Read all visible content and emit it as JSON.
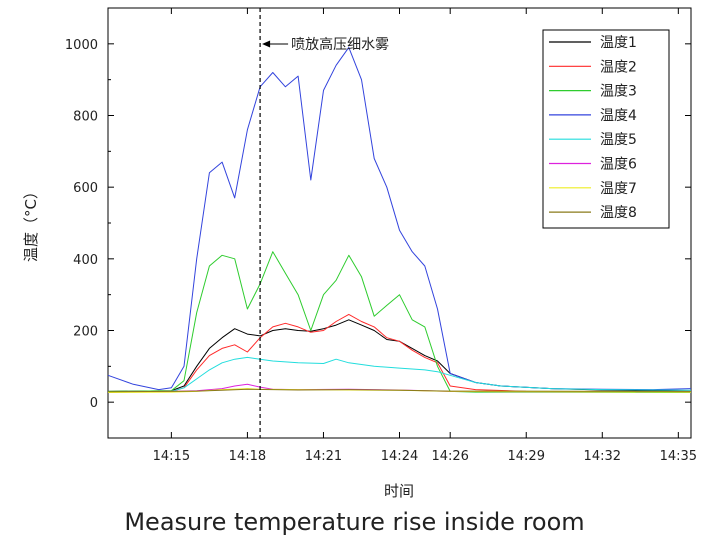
{
  "caption": "Measure temperature rise inside room",
  "chart_data": {
    "type": "line",
    "title": "",
    "xlabel": "时间",
    "ylabel": "温度（°C）",
    "xlim": [
      "14:12:30",
      "14:35:30"
    ],
    "ylim": [
      -100,
      1100
    ],
    "x_ticks": [
      "14:15",
      "14:18",
      "14:21",
      "14:24",
      "14:26",
      "14:29",
      "14:32",
      "14:35"
    ],
    "y_ticks": [
      0,
      200,
      400,
      600,
      800,
      1000
    ],
    "grid": false,
    "legend_position": "top-right",
    "annotation": {
      "text": "喷放高压细水雾",
      "x": "14:18:30"
    },
    "series": [
      {
        "name": "温度1",
        "color": "#000000",
        "points": [
          [
            "14:12:30",
            30
          ],
          [
            "14:15:00",
            32
          ],
          [
            "14:15:30",
            45
          ],
          [
            "14:16:00",
            100
          ],
          [
            "14:16:30",
            150
          ],
          [
            "14:17:00",
            180
          ],
          [
            "14:17:30",
            205
          ],
          [
            "14:18:00",
            190
          ],
          [
            "14:18:30",
            185
          ],
          [
            "14:19:00",
            200
          ],
          [
            "14:19:30",
            205
          ],
          [
            "14:20:00",
            200
          ],
          [
            "14:20:30",
            198
          ],
          [
            "14:21:00",
            205
          ],
          [
            "14:21:30",
            215
          ],
          [
            "14:22:00",
            230
          ],
          [
            "14:22:30",
            215
          ],
          [
            "14:23:00",
            200
          ],
          [
            "14:23:30",
            175
          ],
          [
            "14:24:00",
            170
          ],
          [
            "14:24:30",
            150
          ],
          [
            "14:25:00",
            130
          ],
          [
            "14:25:30",
            115
          ],
          [
            "14:26:00",
            80
          ],
          [
            "14:27:00",
            55
          ],
          [
            "14:28:00",
            45
          ],
          [
            "14:30:00",
            38
          ],
          [
            "14:32:00",
            34
          ],
          [
            "14:34:00",
            32
          ],
          [
            "14:35:30",
            30
          ]
        ]
      },
      {
        "name": "温度2",
        "color": "#ff2a2a",
        "points": [
          [
            "14:12:30",
            28
          ],
          [
            "14:15:00",
            30
          ],
          [
            "14:15:30",
            40
          ],
          [
            "14:16:00",
            90
          ],
          [
            "14:16:30",
            130
          ],
          [
            "14:17:00",
            150
          ],
          [
            "14:17:30",
            160
          ],
          [
            "14:18:00",
            140
          ],
          [
            "14:18:30",
            180
          ],
          [
            "14:19:00",
            210
          ],
          [
            "14:19:30",
            220
          ],
          [
            "14:20:00",
            210
          ],
          [
            "14:20:30",
            195
          ],
          [
            "14:21:00",
            200
          ],
          [
            "14:21:30",
            225
          ],
          [
            "14:22:00",
            245
          ],
          [
            "14:22:30",
            225
          ],
          [
            "14:23:00",
            210
          ],
          [
            "14:23:30",
            180
          ],
          [
            "14:24:00",
            170
          ],
          [
            "14:24:30",
            145
          ],
          [
            "14:25:00",
            125
          ],
          [
            "14:25:30",
            110
          ],
          [
            "14:26:00",
            45
          ],
          [
            "14:27:00",
            35
          ],
          [
            "14:29:00",
            30
          ],
          [
            "14:35:30",
            28
          ]
        ]
      },
      {
        "name": "温度3",
        "color": "#2ecc2e",
        "points": [
          [
            "14:12:30",
            30
          ],
          [
            "14:15:00",
            32
          ],
          [
            "14:15:30",
            60
          ],
          [
            "14:16:00",
            250
          ],
          [
            "14:16:30",
            380
          ],
          [
            "14:17:00",
            410
          ],
          [
            "14:17:30",
            400
          ],
          [
            "14:18:00",
            260
          ],
          [
            "14:18:30",
            330
          ],
          [
            "14:19:00",
            420
          ],
          [
            "14:19:30",
            360
          ],
          [
            "14:20:00",
            300
          ],
          [
            "14:20:30",
            200
          ],
          [
            "14:21:00",
            300
          ],
          [
            "14:21:30",
            340
          ],
          [
            "14:22:00",
            410
          ],
          [
            "14:22:30",
            350
          ],
          [
            "14:23:00",
            240
          ],
          [
            "14:23:30",
            270
          ],
          [
            "14:24:00",
            300
          ],
          [
            "14:24:30",
            230
          ],
          [
            "14:25:00",
            210
          ],
          [
            "14:25:30",
            100
          ],
          [
            "14:26:00",
            30
          ],
          [
            "14:27:00",
            28
          ],
          [
            "14:35:30",
            27
          ]
        ]
      },
      {
        "name": "温度4",
        "color": "#3344dd",
        "points": [
          [
            "14:12:30",
            75
          ],
          [
            "14:13:30",
            50
          ],
          [
            "14:14:30",
            35
          ],
          [
            "14:15:00",
            40
          ],
          [
            "14:15:30",
            100
          ],
          [
            "14:16:00",
            400
          ],
          [
            "14:16:30",
            640
          ],
          [
            "14:17:00",
            670
          ],
          [
            "14:17:30",
            570
          ],
          [
            "14:18:00",
            760
          ],
          [
            "14:18:30",
            880
          ],
          [
            "14:19:00",
            920
          ],
          [
            "14:19:30",
            880
          ],
          [
            "14:20:00",
            910
          ],
          [
            "14:20:30",
            620
          ],
          [
            "14:21:00",
            870
          ],
          [
            "14:21:30",
            940
          ],
          [
            "14:22:00",
            990
          ],
          [
            "14:22:30",
            900
          ],
          [
            "14:23:00",
            680
          ],
          [
            "14:23:30",
            600
          ],
          [
            "14:24:00",
            480
          ],
          [
            "14:24:30",
            420
          ],
          [
            "14:25:00",
            380
          ],
          [
            "14:25:30",
            260
          ],
          [
            "14:26:00",
            80
          ],
          [
            "14:27:00",
            55
          ],
          [
            "14:28:00",
            45
          ],
          [
            "14:30:00",
            38
          ],
          [
            "14:32:00",
            36
          ],
          [
            "14:34:00",
            35
          ],
          [
            "14:35:30",
            38
          ]
        ]
      },
      {
        "name": "温度5",
        "color": "#22dddd",
        "points": [
          [
            "14:12:30",
            28
          ],
          [
            "14:15:00",
            30
          ],
          [
            "14:15:30",
            40
          ],
          [
            "14:16:00",
            65
          ],
          [
            "14:16:30",
            90
          ],
          [
            "14:17:00",
            110
          ],
          [
            "14:17:30",
            120
          ],
          [
            "14:18:00",
            125
          ],
          [
            "14:18:30",
            120
          ],
          [
            "14:19:00",
            115
          ],
          [
            "14:20:00",
            110
          ],
          [
            "14:21:00",
            108
          ],
          [
            "14:21:30",
            120
          ],
          [
            "14:22:00",
            110
          ],
          [
            "14:23:00",
            100
          ],
          [
            "14:24:00",
            95
          ],
          [
            "14:25:00",
            90
          ],
          [
            "14:25:30",
            85
          ],
          [
            "14:26:00",
            75
          ],
          [
            "14:27:00",
            55
          ],
          [
            "14:28:00",
            45
          ],
          [
            "14:30:00",
            38
          ],
          [
            "14:32:00",
            35
          ],
          [
            "14:35:30",
            33
          ]
        ]
      },
      {
        "name": "温度6",
        "color": "#dd22dd",
        "points": [
          [
            "14:12:30",
            28
          ],
          [
            "14:15:00",
            30
          ],
          [
            "14:16:00",
            32
          ],
          [
            "14:17:00",
            38
          ],
          [
            "14:17:30",
            45
          ],
          [
            "14:18:00",
            50
          ],
          [
            "14:18:30",
            42
          ],
          [
            "14:19:00",
            36
          ],
          [
            "14:20:00",
            35
          ],
          [
            "14:22:00",
            36
          ],
          [
            "14:24:00",
            34
          ],
          [
            "14:26:00",
            30
          ],
          [
            "14:35:30",
            28
          ]
        ]
      },
      {
        "name": "温度7",
        "color": "#eeee22",
        "points": [
          [
            "14:12:30",
            27
          ],
          [
            "14:15:00",
            28
          ],
          [
            "14:16:00",
            30
          ],
          [
            "14:17:00",
            35
          ],
          [
            "14:18:00",
            38
          ],
          [
            "14:18:30",
            36
          ],
          [
            "14:20:00",
            35
          ],
          [
            "14:22:00",
            34
          ],
          [
            "14:24:00",
            33
          ],
          [
            "14:26:00",
            30
          ],
          [
            "14:35:30",
            28
          ]
        ]
      },
      {
        "name": "温度8",
        "color": "#8a7a1a",
        "points": [
          [
            "14:12:30",
            29
          ],
          [
            "14:15:00",
            30
          ],
          [
            "14:16:00",
            31
          ],
          [
            "14:17:00",
            33
          ],
          [
            "14:18:00",
            36
          ],
          [
            "14:19:00",
            35
          ],
          [
            "14:20:00",
            34
          ],
          [
            "14:22:00",
            35
          ],
          [
            "14:24:00",
            33
          ],
          [
            "14:26:00",
            31
          ],
          [
            "14:35:30",
            30
          ]
        ]
      }
    ]
  }
}
